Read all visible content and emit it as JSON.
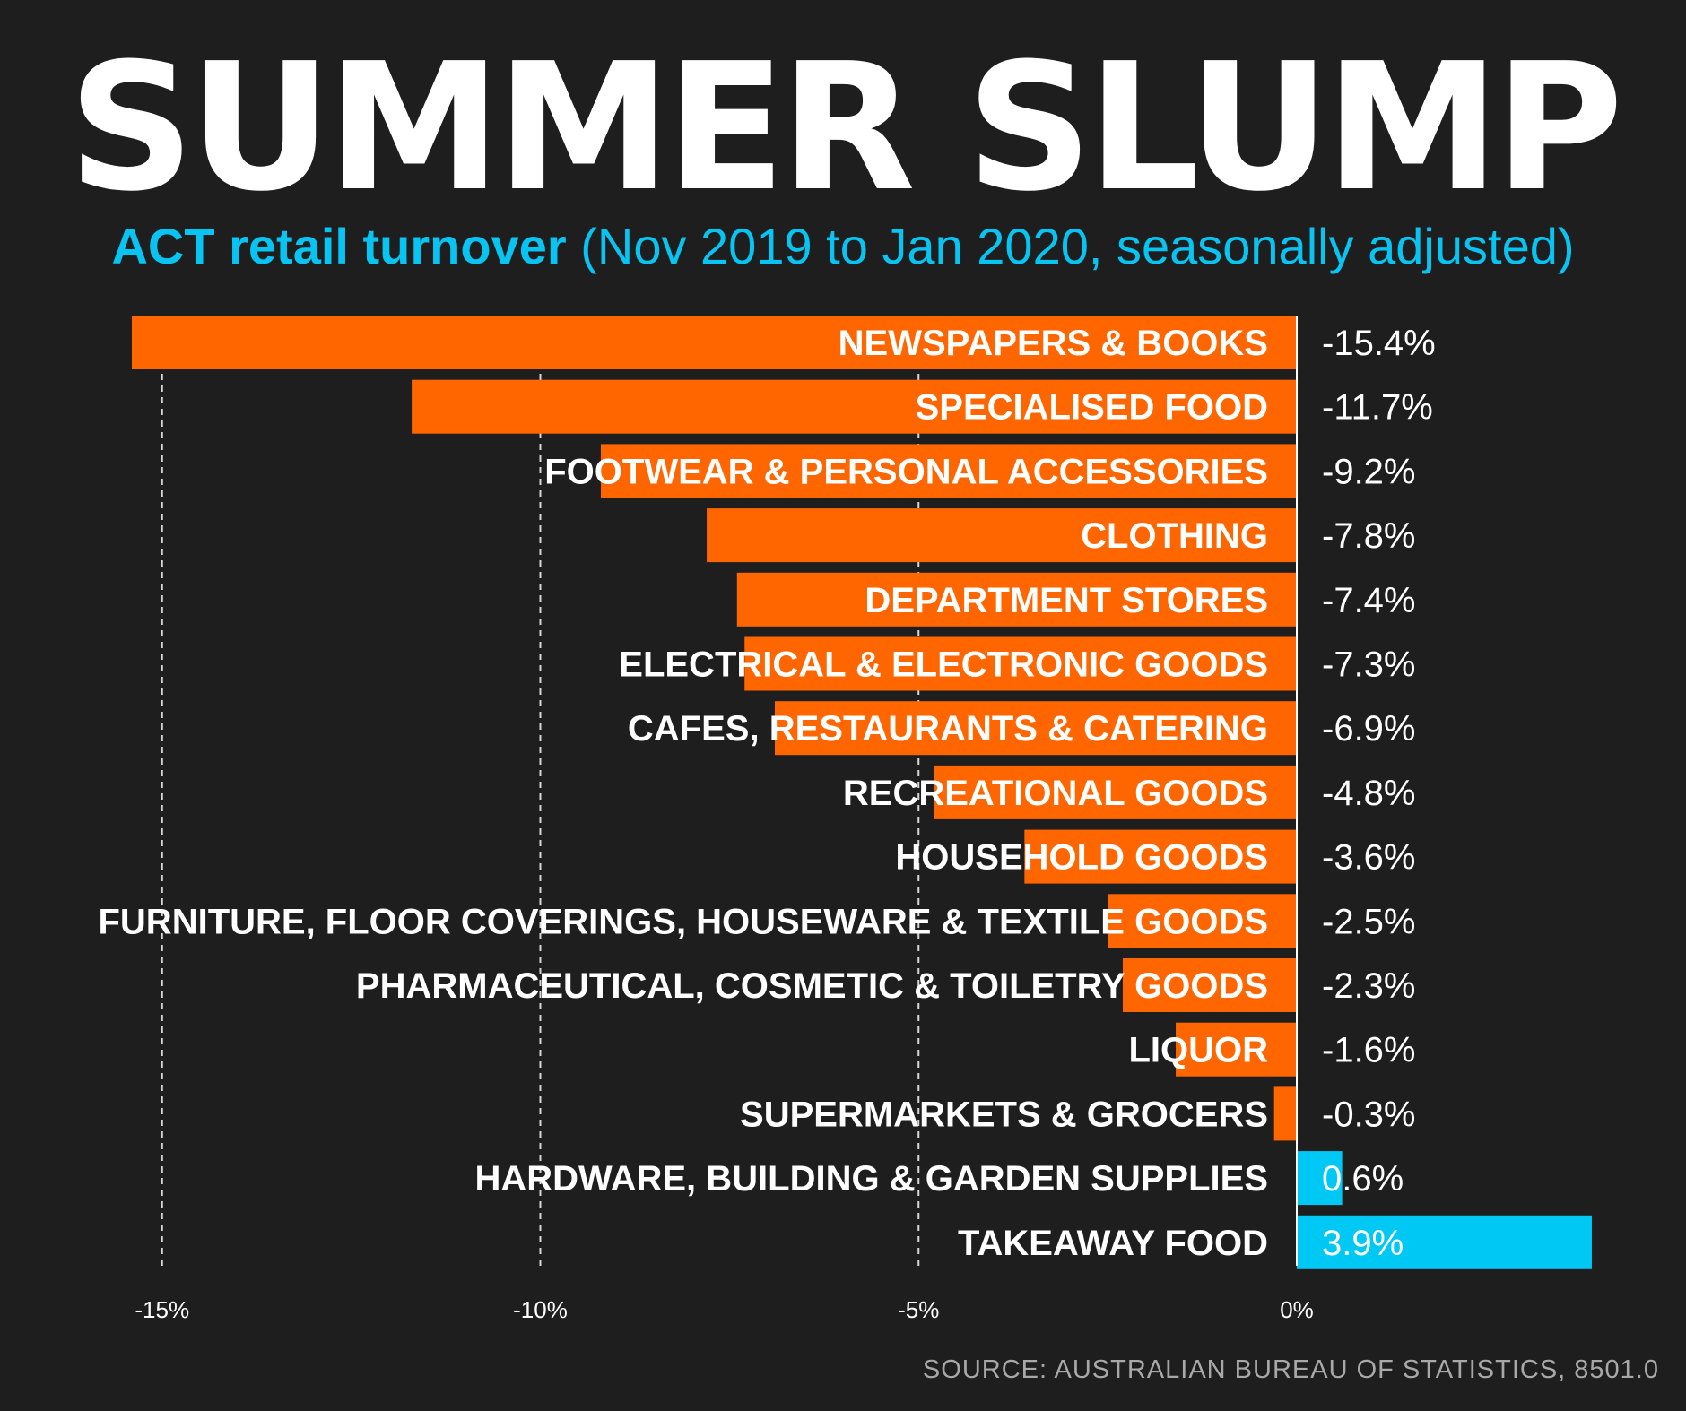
{
  "chart_data": {
    "type": "bar",
    "orientation": "horizontal",
    "title": "SUMMER SLUMP",
    "subtitle_bold": "ACT retail turnover",
    "subtitle_rest": "(Nov 2019 to Jan 2020, seasonally adjusted)",
    "categories": [
      "NEWSPAPERS & BOOKS",
      "SPECIALISED FOOD",
      "FOOTWEAR & PERSONAL ACCESSORIES",
      "CLOTHING",
      "DEPARTMENT STORES",
      "ELECTRICAL & ELECTRONIC GOODS",
      "CAFES, RESTAURANTS & CATERING",
      "RECREATIONAL GOODS",
      "HOUSEHOLD GOODS",
      "FURNITURE, FLOOR COVERINGS, HOUSEWARE & TEXTILE GOODS",
      "PHARMACEUTICAL, COSMETIC & TOILETRY GOODS",
      "LIQUOR",
      "SUPERMARKETS & GROCERS",
      "HARDWARE, BUILDING & GARDEN SUPPLIES",
      "TAKEAWAY FOOD"
    ],
    "values": [
      -15.4,
      -11.7,
      -9.2,
      -7.8,
      -7.4,
      -7.3,
      -6.9,
      -4.8,
      -3.6,
      -2.5,
      -2.3,
      -1.6,
      -0.3,
      0.6,
      3.9
    ],
    "value_labels": [
      "-15.4%",
      "-11.7%",
      "-9.2%",
      "-7.8%",
      "-7.4%",
      "-7.3%",
      "-6.9%",
      "-4.8%",
      "-3.6%",
      "-2.5%",
      "-2.3%",
      "-1.6%",
      "-0.3%",
      "0.6%",
      "3.9%"
    ],
    "xticks": [
      -15,
      -10,
      -5,
      0
    ],
    "xtick_labels": [
      "-15%",
      "-10%",
      "-5%",
      "0%"
    ],
    "xlim": [
      -15.4,
      3.9
    ],
    "grid": "dashed vertical",
    "colors": {
      "negative": "#ff6600",
      "positive": "#00c8f5",
      "background": "#1e1e1e",
      "subtitle": "#08c4f2"
    }
  },
  "source": "SOURCE: AUSTRALIAN BUREAU OF STATISTICS, 8501.0"
}
